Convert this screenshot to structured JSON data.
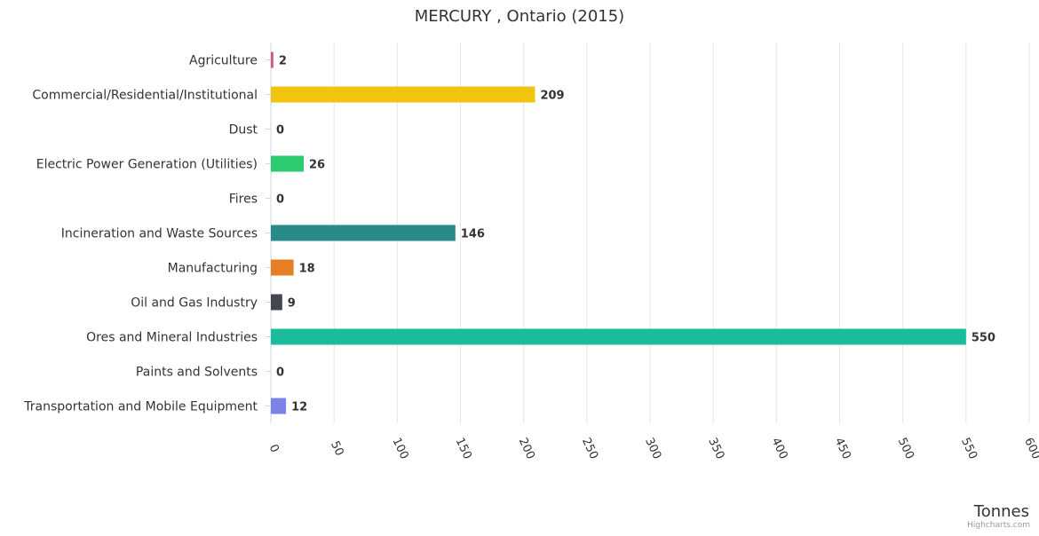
{
  "chart_data": {
    "type": "bar",
    "orientation": "horizontal",
    "title": "MERCURY , Ontario (2015)",
    "xlabel": "Tonnes",
    "ylabel": "",
    "categories": [
      "Agriculture",
      "Commercial/Residential/Institutional",
      "Dust",
      "Electric Power Generation (Utilities)",
      "Fires",
      "Incineration and Waste Sources",
      "Manufacturing",
      "Oil and Gas Industry",
      "Ores and Mineral Industries",
      "Paints and Solvents",
      "Transportation and Mobile Equipment"
    ],
    "values": [
      2,
      209,
      0,
      26,
      0,
      146,
      18,
      9,
      550,
      0,
      12
    ],
    "data_labels": [
      "2",
      "209",
      "0",
      "26",
      "0",
      "146",
      "18",
      "9",
      "550",
      "0",
      "12"
    ],
    "colors": [
      "#d25880",
      "#f1c40f",
      "#95a5a6",
      "#2ecc71",
      "#e74c3c",
      "#2a8a8a",
      "#e67e22",
      "#464650",
      "#1abc9c",
      "#9b59b6",
      "#7b83e6"
    ],
    "xlim": [
      0,
      600
    ],
    "xticks": [
      "0",
      "50",
      "100",
      "150",
      "200",
      "250",
      "300",
      "350",
      "400",
      "450",
      "500",
      "550",
      "600"
    ],
    "grid": true,
    "legend": "none"
  },
  "credits": "Highcharts.com"
}
